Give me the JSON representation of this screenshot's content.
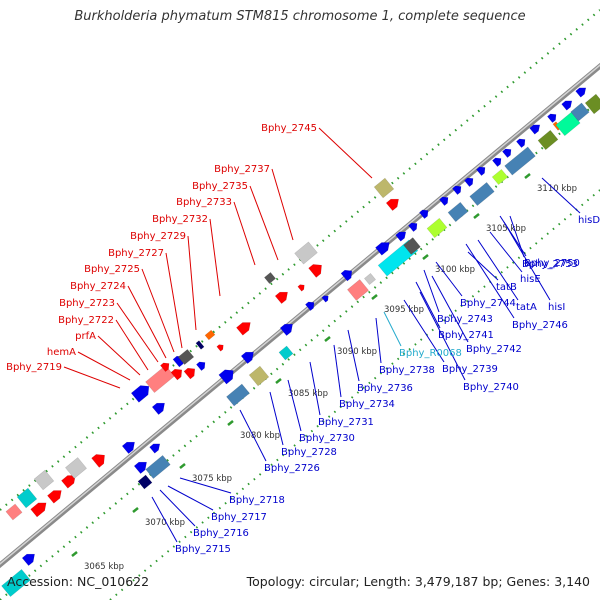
{
  "title": "Burkholderia phymatum STM815 chromosome 1, complete sequence",
  "footer": {
    "accession": "Accession: NC_010622",
    "topology": "Topology: circular; Length: 3,479,187 bp; Genes: 3,140"
  },
  "scale_labels": [
    "3065 kbp",
    "3070 kbp",
    "3075 kbp",
    "3080 kbp",
    "3085 kbp",
    "3090 kbp",
    "3095 kbp",
    "3100 kbp",
    "3105 kbp",
    "3110 kbp"
  ],
  "labels_upper": [
    "Bphy_2719",
    "hemA",
    "prfA",
    "Bphy_2722",
    "Bphy_2723",
    "Bphy_2724",
    "Bphy_2725",
    "Bphy_2727",
    "Bphy_2729",
    "Bphy_2732",
    "Bphy_2733",
    "Bphy_2735",
    "Bphy_2737",
    "Bphy_2745"
  ],
  "labels_lower": [
    "Bphy_2715",
    "Bphy_2716",
    "Bphy_2717",
    "Bphy_2718",
    "Bphy_2726",
    "Bphy_2728",
    "Bphy_2730",
    "Bphy_2731",
    "Bphy_2734",
    "Bphy_2736",
    "Bphy_2738",
    "Bphy_R0068",
    "Bphy_2739",
    "Bphy_2740",
    "Bphy_2741",
    "Bphy_2742",
    "Bphy_2743",
    "Bphy_2744",
    "Bphy_2746",
    "tatA",
    "tatB",
    "hisI",
    "hisE",
    "Bphy_2750",
    "Bphy_2753",
    "hisD"
  ],
  "colors": {
    "upper_label": "#dd0000",
    "lower_label": "#0000cc",
    "rna_label": "#22aacc",
    "backbone": "#9a9a9a",
    "dots": "#2f9a2f"
  }
}
